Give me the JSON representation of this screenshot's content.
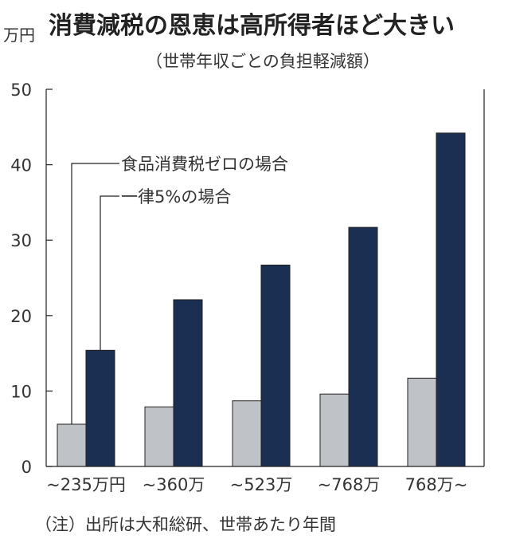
{
  "chart_data": {
    "type": "bar",
    "title": "消費減税の恩恵は高所得者ほど大きい",
    "subtitle": "（世帯年収ごとの負担軽減額）",
    "ylabel": "万円",
    "ylim": [
      0,
      50
    ],
    "yticks": [
      0,
      10,
      20,
      30,
      40,
      50
    ],
    "categories": [
      "~235万円",
      "~360万",
      "~523万",
      "~768万",
      "768万~"
    ],
    "series": [
      {
        "name": "一律5%の場合",
        "values": [
          5.6,
          7.9,
          8.7,
          9.6,
          11.7
        ],
        "color": "#bfc3c7"
      },
      {
        "name": "食品消費税ゼロの場合",
        "values": [
          15.4,
          22.1,
          26.7,
          31.7,
          44.2
        ],
        "color": "#1b2f52"
      }
    ],
    "grid": false,
    "note": "（注）出所は大和総研、世帯あたり年間"
  }
}
